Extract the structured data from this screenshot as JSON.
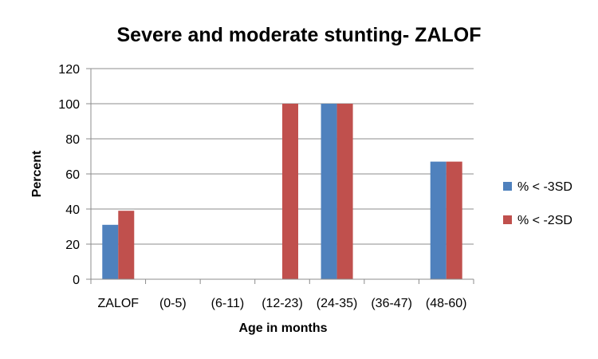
{
  "chart_data": {
    "type": "bar",
    "title": "Severe and moderate stunting- ZALOF",
    "xlabel": "Age in months",
    "ylabel": "Percent",
    "categories": [
      "ZALOF",
      "(0-5)",
      "(6-11)",
      "(12-23)",
      "(24-35)",
      "(36-47)",
      "(48-60)"
    ],
    "series": [
      {
        "name": "% < -3SD",
        "color": "#4F81BD",
        "values": [
          31,
          0,
          0,
          0,
          100,
          0,
          67
        ]
      },
      {
        "name": "% < -2SD",
        "color": "#C0504D",
        "values": [
          39,
          0,
          0,
          100,
          100,
          0,
          67
        ]
      }
    ],
    "ylim": [
      0,
      120
    ],
    "yticks": [
      0,
      20,
      40,
      60,
      80,
      100,
      120
    ],
    "grid": true,
    "legend_position": "right"
  }
}
